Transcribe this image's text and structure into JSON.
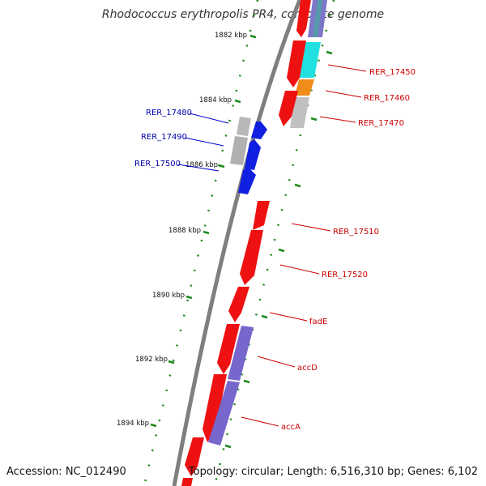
{
  "title": "Rhodococcus erythropolis PR4, complete genome",
  "accession": "Accession: NC_012490",
  "summary": "Topology: circular; Length: 6,516,310 bp; Genes: 6,102",
  "colors": {
    "forward_label": "#cc0000",
    "reverse_label": "#0000aa",
    "tick": "#228b22",
    "backbone": "#808080"
  },
  "kbp_labels": [
    "1882 kbp",
    "1884 kbp",
    "1886 kbp",
    "1888 kbp",
    "1890 kbp",
    "1892 kbp",
    "1894 kbp"
  ],
  "forward_labels": [
    "RER_17450",
    "RER_17460",
    "RER_17470",
    "RER_17510",
    "RER_17520",
    "fadE",
    "accD",
    "accA"
  ],
  "reverse_labels": [
    "RER_17480",
    "RER_17490",
    "RER_17500"
  ]
}
